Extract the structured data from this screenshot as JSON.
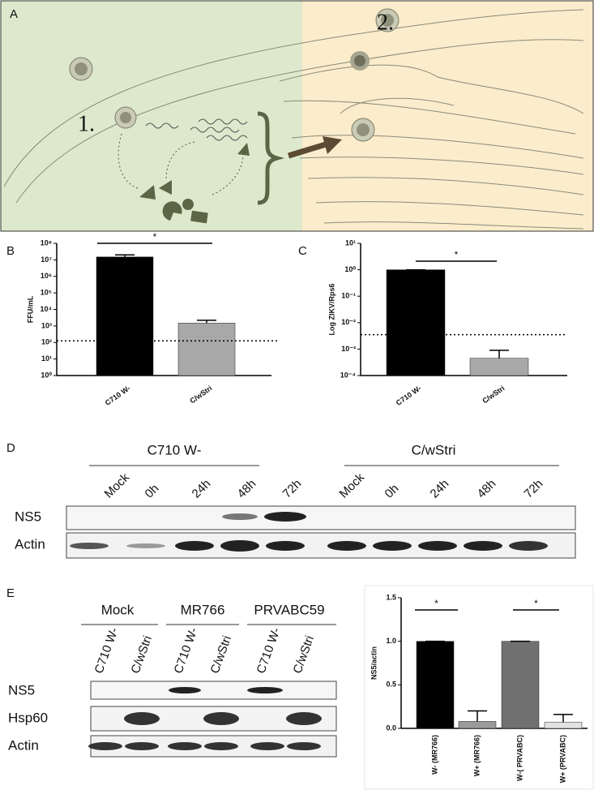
{
  "panel_a": {
    "label": "A",
    "steps": [
      "1.",
      "2."
    ]
  },
  "chart_data": [
    {
      "type": "bar",
      "panel": "B",
      "y_label": "FFU/mL",
      "categories": [
        "C710 W-",
        "C/wStri"
      ],
      "values": [
        15000000,
        1500
      ],
      "errors": [
        5000000,
        700
      ],
      "colors": [
        "#000000",
        "#a8a8a8"
      ],
      "log_scale": true,
      "ylim": [
        1,
        100000000
      ],
      "yticks": [
        {
          "value": 1,
          "label": "10⁰"
        },
        {
          "value": 10,
          "label": "10¹"
        },
        {
          "value": 100,
          "label": "10²"
        },
        {
          "value": 1000,
          "label": "10³"
        },
        {
          "value": 10000,
          "label": "10⁴"
        },
        {
          "value": 100000,
          "label": "10⁵"
        },
        {
          "value": 1000000,
          "label": "10⁶"
        },
        {
          "value": 10000000,
          "label": "10⁷"
        },
        {
          "value": 100000000,
          "label": "10⁸"
        }
      ],
      "reference_line": 125,
      "annotations": [
        "*"
      ]
    },
    {
      "type": "bar",
      "panel": "C",
      "y_label": "Log ZIKV/Rps6",
      "categories": [
        "C710 W-",
        "C/wStri"
      ],
      "values": [
        1,
        0.00045
      ],
      "errors": [
        0,
        0.00045
      ],
      "colors": [
        "#000000",
        "#a8a8a8"
      ],
      "log_scale": true,
      "ylim": [
        0.0001,
        10
      ],
      "yticks": [
        {
          "value": 0.0001,
          "label": "10⁻⁴"
        },
        {
          "value": 0.001,
          "label": "10⁻³"
        },
        {
          "value": 0.01,
          "label": "10⁻²"
        },
        {
          "value": 0.1,
          "label": "10⁻¹"
        },
        {
          "value": 1,
          "label": "10⁰"
        },
        {
          "value": 10,
          "label": "10¹"
        }
      ],
      "reference_line": 0.0035,
      "annotations": [
        "*"
      ]
    },
    {
      "type": "bar",
      "y_label": "NS5/actin",
      "categories": [
        "W- (MR766)",
        "W+ (MR766)",
        "W-( PRVABC)",
        "W+ (PRVABC)"
      ],
      "values": [
        1.0,
        0.08,
        1.0,
        0.07
      ],
      "errors": [
        0,
        0.12,
        0,
        0.09
      ],
      "colors": [
        "#000000",
        "#9a9a9a",
        "#707070",
        "#e2e2e2"
      ],
      "log_scale": false,
      "ylim": [
        0,
        1.5
      ],
      "yticks": [
        {
          "value": 0,
          "label": "0.0"
        },
        0.5,
        {
          "value": 1,
          "label": "1.0"
        },
        1.5
      ],
      "annotations": [
        "*",
        "*"
      ]
    }
  ],
  "panel_d": {
    "label": "D",
    "groups": [
      {
        "name": "C710 W-",
        "lanes": [
          "Mock",
          "0h",
          "24h",
          "48h",
          "72h"
        ]
      },
      {
        "name": "C/wStri",
        "lanes": [
          "Mock",
          "0h",
          "24h",
          "48h",
          "72h"
        ]
      }
    ],
    "rows": [
      "NS5",
      "Actin"
    ]
  },
  "panel_e": {
    "label": "E",
    "groups": [
      "Mock",
      "MR766",
      "PRVABC59"
    ],
    "lanes": [
      "C710 W-",
      "C/wStri",
      "C710 W-",
      "C/wStri",
      "C710 W-",
      "C/wStri"
    ],
    "rows": [
      "NS5",
      "Hsp60",
      "Actin"
    ]
  }
}
